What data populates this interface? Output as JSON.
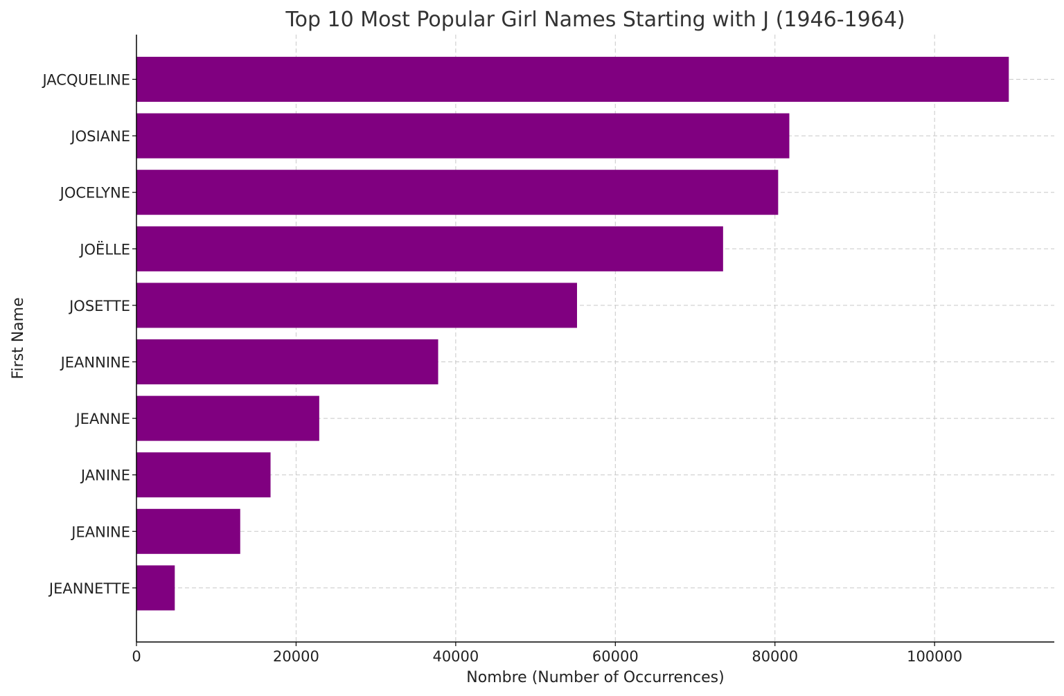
{
  "chart_data": {
    "type": "bar",
    "orientation": "horizontal",
    "title": "Top 10 Most Popular Girl Names Starting with J (1946-1964)",
    "xlabel": "Nombre (Number of Occurrences)",
    "ylabel": "First Name",
    "categories": [
      "JACQUELINE",
      "JOSIANE",
      "JOCELYNE",
      "JOËLLE",
      "JOSETTE",
      "JEANNINE",
      "JEANNE",
      "JANINE",
      "JEANINE",
      "JEANNETTE"
    ],
    "values": [
      109300,
      81800,
      80400,
      73500,
      55200,
      37800,
      22900,
      16800,
      13000,
      4800
    ],
    "xlim": [
      0,
      115000
    ],
    "xticks": [
      0,
      20000,
      40000,
      60000,
      80000,
      100000
    ],
    "bar_color": "#800080",
    "grid": true
  }
}
